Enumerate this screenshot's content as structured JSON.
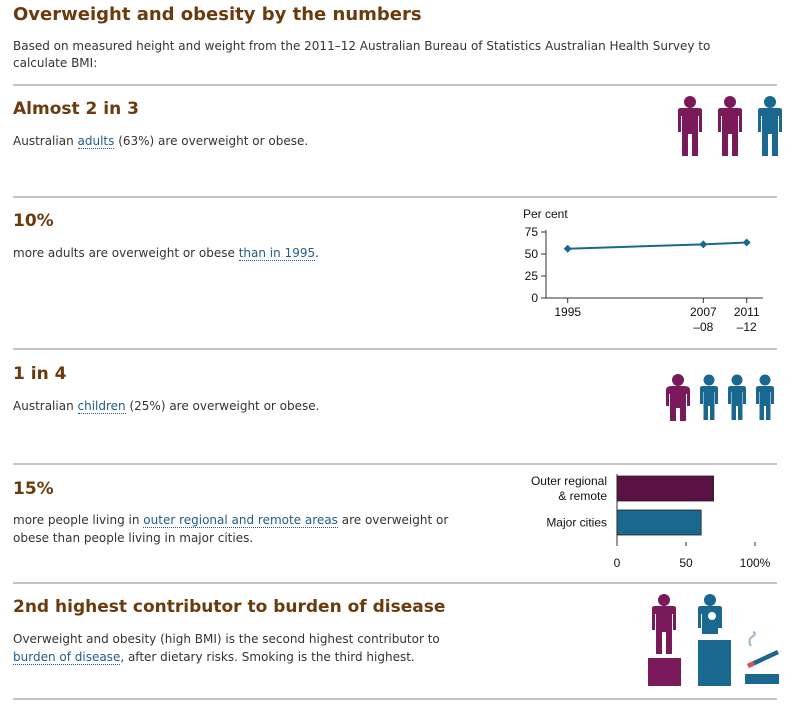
{
  "page": {
    "title": "Overweight and obesity by the numbers",
    "intro": "Based on measured height and weight from the 2011–12 Australian Bureau of Statistics Australian Health Survey to calculate BMI:"
  },
  "sections": [
    {
      "heading": "Almost 2 in 3",
      "text_before": "Australian ",
      "link": "adults",
      "text_after": " (63%) are overweight or obese."
    },
    {
      "heading": "10%",
      "text_before": "more adults are overweight or obese ",
      "link": "than in 1995",
      "text_after": "."
    },
    {
      "heading": "1 in 4",
      "text_before": "Australian ",
      "link": "children",
      "text_after": " (25%) are overweight or obese."
    },
    {
      "heading": "15%",
      "text_before": "more people living in ",
      "link": "outer regional and remote areas",
      "text_after": " are overweight or obese than people living in major cities."
    },
    {
      "heading": "2nd highest contributor to burden of disease",
      "text_before": "Overweight and obesity (high BMI) is the second highest contributor to ",
      "link": "burden of disease",
      "text_after": ", after dietary risks. Smoking is the third highest."
    }
  ],
  "colors": {
    "purple": "#7a1a5a",
    "blue": "#1a6790",
    "dark_purple": "#5a1245",
    "heading": "#6b3b0d"
  },
  "icons": {
    "adults": [
      "person-purple-icon",
      "person-purple-icon",
      "person-blue-icon"
    ],
    "children": [
      "child-purple-icon",
      "child-blue-icon",
      "child-blue-icon",
      "child-blue-icon"
    ],
    "burden": [
      "person-on-tall-block-icon",
      "person-on-taller-block-icon",
      "cigarette-icon"
    ]
  },
  "chart_data": [
    {
      "type": "line",
      "ylabel": "Per cent",
      "x": [
        1995,
        2007.5,
        2011.5
      ],
      "x_tick_labels": [
        [
          "1995"
        ],
        [
          "2007",
          "–08"
        ],
        [
          "2011",
          "–12"
        ]
      ],
      "values": [
        56,
        61,
        63
      ],
      "ylim": [
        0,
        75
      ],
      "y_ticks": [
        0,
        25,
        50,
        75
      ],
      "grid": false
    },
    {
      "type": "bar",
      "orientation": "horizontal",
      "categories": [
        [
          "Outer regional",
          "& remote"
        ],
        [
          "Major cities"
        ]
      ],
      "values": [
        70,
        61
      ],
      "colors": [
        "#5a1245",
        "#1a6790"
      ],
      "xlim": [
        0,
        100
      ],
      "x_ticks": [
        "0",
        "50",
        "100%"
      ],
      "grid": false
    }
  ]
}
